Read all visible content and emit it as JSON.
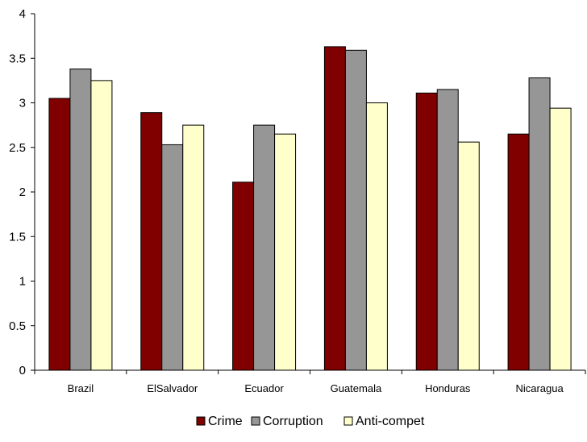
{
  "chart_data": {
    "type": "bar",
    "categories": [
      "Brazil",
      "ElSalvador",
      "Ecuador",
      "Guatemala",
      "Honduras",
      "Nicaragua"
    ],
    "series": [
      {
        "name": "Crime",
        "color": "#800000",
        "values": [
          3.05,
          2.89,
          2.11,
          3.63,
          3.11,
          2.65
        ]
      },
      {
        "name": "Corruption",
        "color": "#969696",
        "values": [
          3.38,
          2.53,
          2.75,
          3.59,
          3.15,
          3.28
        ]
      },
      {
        "name": "Anti-compet",
        "color": "#ffffcc",
        "values": [
          3.25,
          2.75,
          2.65,
          3.0,
          2.56,
          2.94
        ]
      }
    ],
    "ylim": [
      0,
      4
    ],
    "yticks": [
      0,
      0.5,
      1,
      1.5,
      2,
      2.5,
      3,
      3.5,
      4
    ],
    "ytick_labels": [
      "0",
      "0.5",
      "1",
      "1.5",
      "2",
      "2.5",
      "3",
      "3.5",
      "4"
    ],
    "grid": false,
    "legend_position": "bottom",
    "title": "",
    "xlabel": "",
    "ylabel": ""
  }
}
